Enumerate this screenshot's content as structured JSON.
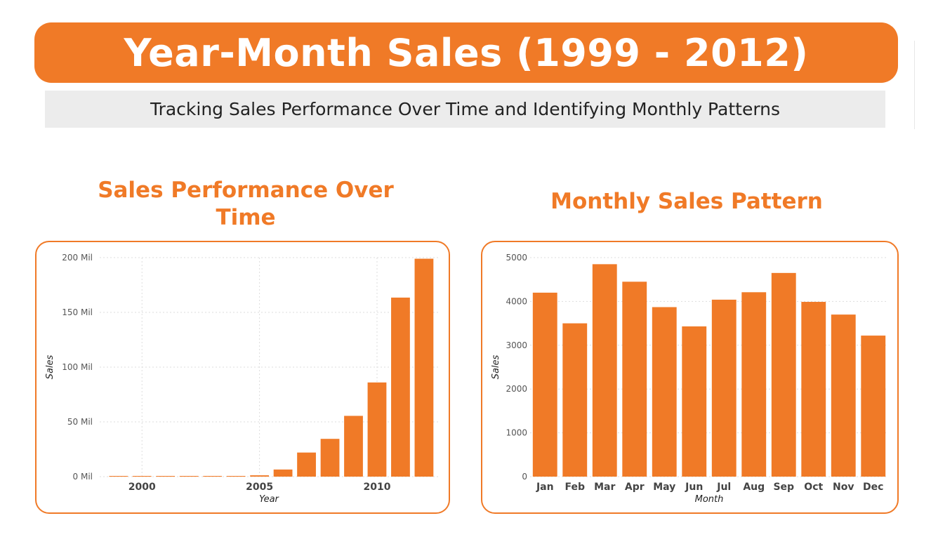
{
  "header": {
    "title": "Year-Month Sales (1999 - 2012)",
    "subtitle": "Tracking Sales Performance Over Time and Identifying Monthly Patterns"
  },
  "colors": {
    "accent": "#F07A27",
    "subtitle_bg": "#ececec",
    "grid": "#dddddd"
  },
  "chart_data": [
    {
      "type": "bar",
      "title": "Sales Performance Over Time",
      "xlabel": "Year",
      "ylabel": "Sales",
      "x": [
        1999,
        2000,
        2001,
        2002,
        2003,
        2004,
        2005,
        2006,
        2007,
        2008,
        2009,
        2010,
        2011,
        2012
      ],
      "values": [
        0.2,
        0.3,
        0.4,
        0.4,
        0.5,
        0.6,
        1.2,
        6.5,
        22,
        34.5,
        55.5,
        86,
        163.5,
        199
      ],
      "value_unit": "Mil",
      "xlim": [
        1998.2,
        2012.6
      ],
      "ylim": [
        0,
        200
      ],
      "yticks": [
        0,
        50,
        100,
        150,
        200
      ],
      "ytick_labels": [
        "0 Mil",
        "50 Mil",
        "100 Mil",
        "150 Mil",
        "200 Mil"
      ],
      "xticks": [
        2000,
        2005,
        2010
      ],
      "xtick_labels": [
        "2000",
        "2005",
        "2010"
      ],
      "grid": true,
      "legend": "none"
    },
    {
      "type": "bar",
      "title": "Monthly Sales Pattern",
      "xlabel": "Month",
      "ylabel": "Sales",
      "categories": [
        "Jan",
        "Feb",
        "Mar",
        "Apr",
        "May",
        "Jun",
        "Jul",
        "Aug",
        "Sep",
        "Oct",
        "Nov",
        "Dec"
      ],
      "values": [
        4200,
        3500,
        4850,
        4450,
        3870,
        3430,
        4040,
        4210,
        4650,
        3990,
        3700,
        3220
      ],
      "ylim": [
        0,
        5000
      ],
      "yticks": [
        0,
        1000,
        2000,
        3000,
        4000,
        5000
      ],
      "ytick_labels": [
        "0",
        "1000",
        "2000",
        "3000",
        "4000",
        "5000"
      ],
      "grid": true,
      "legend": "none"
    }
  ]
}
